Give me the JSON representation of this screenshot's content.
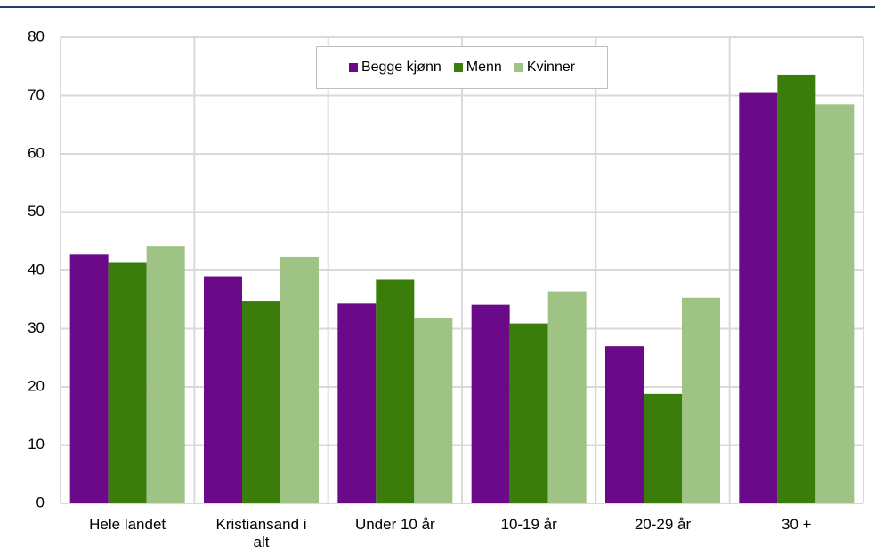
{
  "chart_data": {
    "type": "bar",
    "categories": [
      "Hele landet",
      "Kristiansand i alt",
      "Under 10 år",
      "10-19 år",
      "20-29 år",
      "30 +"
    ],
    "series": [
      {
        "name": "Begge kjønn",
        "color": "#6a0a88",
        "values": [
          42.7,
          39.0,
          34.3,
          34.1,
          27.0,
          70.6
        ]
      },
      {
        "name": "Menn",
        "color": "#3b7d0a",
        "values": [
          41.3,
          34.8,
          38.4,
          30.9,
          18.8,
          73.6
        ]
      },
      {
        "name": "Kvinner",
        "color": "#9fc385",
        "values": [
          44.1,
          42.3,
          31.9,
          36.4,
          35.3,
          68.5
        ]
      }
    ],
    "ylim": [
      0,
      80
    ],
    "yticks": [
      0,
      10,
      20,
      30,
      40,
      50,
      60,
      70,
      80
    ],
    "grid": true,
    "legend": "top"
  }
}
